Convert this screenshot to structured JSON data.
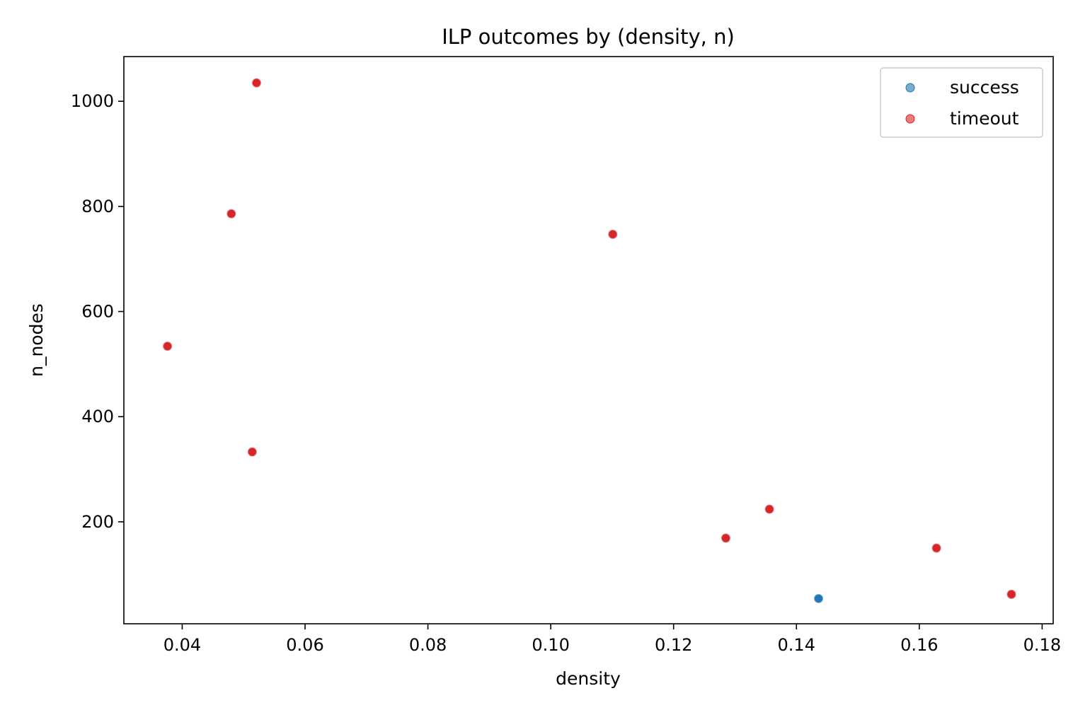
{
  "chart_data": {
    "type": "scatter",
    "title": "ILP outcomes by (density, n)",
    "xlabel": "density",
    "ylabel": "n_nodes",
    "xlim": [
      0.0305,
      0.1818
    ],
    "ylim": [
      6,
      1085
    ],
    "xticks": [
      0.04,
      0.06,
      0.08,
      0.1,
      0.12,
      0.14,
      0.16,
      0.18
    ],
    "xtick_labels": [
      "0.04",
      "0.06",
      "0.08",
      "0.10",
      "0.12",
      "0.14",
      "0.16",
      "0.18"
    ],
    "yticks": [
      200,
      400,
      600,
      800,
      1000
    ],
    "ytick_labels": [
      "200",
      "400",
      "600",
      "800",
      "1000"
    ],
    "grid": false,
    "legend_position": "top-right",
    "series": [
      {
        "name": "success",
        "color": "#1f77b4",
        "points": [
          {
            "x": 0.1436,
            "y": 54
          }
        ]
      },
      {
        "name": "timeout",
        "color": "#d62728",
        "points": [
          {
            "x": 0.0521,
            "y": 1035
          },
          {
            "x": 0.048,
            "y": 786
          },
          {
            "x": 0.1101,
            "y": 747
          },
          {
            "x": 0.0376,
            "y": 534
          },
          {
            "x": 0.0514,
            "y": 333
          },
          {
            "x": 0.1356,
            "y": 224
          },
          {
            "x": 0.1285,
            "y": 169
          },
          {
            "x": 0.1628,
            "y": 150
          },
          {
            "x": 0.175,
            "y": 62
          }
        ]
      }
    ]
  }
}
